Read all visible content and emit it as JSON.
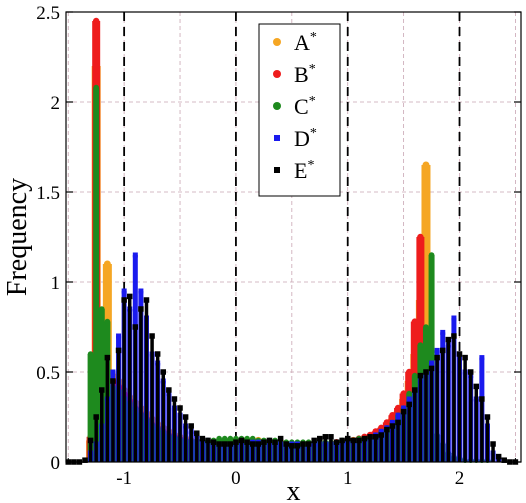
{
  "chart_data": {
    "type": "bar",
    "title": "",
    "xlabel": "x",
    "ylabel": "Frequency",
    "xlim": [
      -1.52,
      2.55
    ],
    "ylim": [
      0,
      2.5
    ],
    "xticks": [
      -1,
      0,
      1,
      2
    ],
    "yticks": [
      0,
      0.5,
      1,
      1.5,
      2,
      2.5
    ],
    "xtick_labels": [
      "-1",
      "0",
      "1",
      "2"
    ],
    "ytick_labels": [
      "0",
      "0.5",
      "1",
      "1.5",
      "2",
      "2.5"
    ],
    "grid": true,
    "vertical_dashed_lines": [
      -1,
      0,
      1,
      2
    ],
    "legend_position": "top-center",
    "series": [
      {
        "name": "A",
        "color": "#f5a623",
        "x": [
          -1.3,
          -1.25,
          -1.2,
          -1.15,
          -1.1,
          -1.05,
          -1.0,
          -0.95,
          -0.9,
          -0.85,
          -0.8,
          -0.75,
          -0.7,
          -0.65,
          -0.6,
          -0.55,
          -0.5,
          -0.45,
          -0.4,
          -0.35,
          -0.3,
          -0.25,
          -0.2,
          -0.15,
          -0.1,
          -0.05,
          0.0,
          0.05,
          0.1,
          0.15,
          0.2,
          0.25,
          0.3,
          0.35,
          0.4,
          0.45,
          0.5,
          0.55,
          0.6,
          0.65,
          0.7,
          0.75,
          0.8,
          0.85,
          0.9,
          0.95,
          1.0,
          1.05,
          1.1,
          1.15,
          1.2,
          1.25,
          1.3,
          1.35,
          1.4,
          1.45,
          1.5,
          1.55,
          1.6,
          1.65,
          1.7
        ],
        "values": [
          0.12,
          2.2,
          0.7,
          1.1,
          0.48,
          0.45,
          0.4,
          0.36,
          0.33,
          0.3,
          0.27,
          0.24,
          0.21,
          0.19,
          0.17,
          0.15,
          0.14,
          0.13,
          0.12,
          0.11,
          0.1,
          0.1,
          0.1,
          0.1,
          0.11,
          0.11,
          0.12,
          0.12,
          0.12,
          0.12,
          0.12,
          0.11,
          0.11,
          0.11,
          0.11,
          0.1,
          0.1,
          0.1,
          0.1,
          0.1,
          0.1,
          0.1,
          0.1,
          0.1,
          0.1,
          0.11,
          0.11,
          0.12,
          0.12,
          0.13,
          0.14,
          0.16,
          0.18,
          0.2,
          0.24,
          0.28,
          0.35,
          0.45,
          0.6,
          0.9,
          1.65
        ]
      },
      {
        "name": "B",
        "color": "#ee1c1c",
        "x": [
          -1.3,
          -1.25,
          -1.2,
          -1.15,
          -1.1,
          -1.05,
          -1.0,
          -0.95,
          -0.9,
          -0.85,
          -0.8,
          -0.75,
          -0.7,
          -0.65,
          -0.6,
          -0.55,
          -0.5,
          -0.45,
          -0.4,
          -0.35,
          -0.3,
          -0.25,
          -0.2,
          -0.15,
          -0.1,
          -0.05,
          0.0,
          0.05,
          0.1,
          0.15,
          0.2,
          0.25,
          0.3,
          0.35,
          0.4,
          0.45,
          0.5,
          0.55,
          0.6,
          0.65,
          0.7,
          0.75,
          0.8,
          0.85,
          0.9,
          0.95,
          1.0,
          1.05,
          1.1,
          1.15,
          1.2,
          1.25,
          1.3,
          1.35,
          1.4,
          1.45,
          1.5,
          1.55,
          1.6,
          1.65,
          1.7
        ],
        "values": [
          0.14,
          2.45,
          0.45,
          0.42,
          0.45,
          0.42,
          0.38,
          0.34,
          0.3,
          0.27,
          0.24,
          0.21,
          0.19,
          0.17,
          0.15,
          0.14,
          0.13,
          0.12,
          0.11,
          0.1,
          0.1,
          0.1,
          0.1,
          0.11,
          0.11,
          0.12,
          0.12,
          0.12,
          0.12,
          0.12,
          0.11,
          0.11,
          0.11,
          0.1,
          0.1,
          0.1,
          0.1,
          0.1,
          0.1,
          0.1,
          0.1,
          0.1,
          0.1,
          0.1,
          0.11,
          0.11,
          0.12,
          0.12,
          0.13,
          0.14,
          0.15,
          0.17,
          0.19,
          0.22,
          0.26,
          0.3,
          0.38,
          0.5,
          0.78,
          1.25,
          0.15
        ]
      },
      {
        "name": "C",
        "color": "#1e8a1e",
        "x": [
          -1.3,
          -1.25,
          -1.2,
          -1.15,
          -1.1,
          -1.05,
          -1.0,
          -0.95,
          -0.9,
          -0.85,
          -0.8,
          -0.75,
          -0.7,
          -0.65,
          -0.6,
          -0.55,
          -0.5,
          -0.45,
          -0.4,
          -0.35,
          -0.3,
          -0.25,
          -0.2,
          -0.15,
          -0.1,
          -0.05,
          0.0,
          0.05,
          0.1,
          0.15,
          0.2,
          0.25,
          0.3,
          0.35,
          0.4,
          0.45,
          0.5,
          0.55,
          0.6,
          0.65,
          0.7,
          0.75,
          0.8,
          0.85,
          0.9,
          0.95,
          1.0,
          1.05,
          1.1,
          1.15,
          1.2,
          1.25,
          1.3,
          1.35,
          1.4,
          1.45,
          1.5,
          1.55,
          1.6,
          1.65,
          1.7,
          1.75,
          1.8,
          1.85,
          1.9,
          1.95,
          2.0,
          2.05,
          2.1,
          2.15,
          2.2,
          2.25
        ],
        "values": [
          0.6,
          2.08,
          0.85,
          0.78,
          0.42,
          0.4,
          0.36,
          0.33,
          0.3,
          0.27,
          0.24,
          0.21,
          0.19,
          0.17,
          0.15,
          0.14,
          0.13,
          0.12,
          0.12,
          0.12,
          0.12,
          0.12,
          0.12,
          0.13,
          0.13,
          0.13,
          0.13,
          0.13,
          0.13,
          0.13,
          0.12,
          0.12,
          0.12,
          0.12,
          0.11,
          0.11,
          0.11,
          0.11,
          0.11,
          0.11,
          0.11,
          0.11,
          0.11,
          0.11,
          0.11,
          0.12,
          0.12,
          0.12,
          0.13,
          0.13,
          0.14,
          0.15,
          0.17,
          0.19,
          0.22,
          0.26,
          0.3,
          0.38,
          0.48,
          0.65,
          0.75,
          1.15,
          0.15,
          0.1,
          0.05,
          0.03,
          0.02,
          0.01,
          0.01,
          0.01,
          0.01,
          0.01
        ]
      },
      {
        "name": "D",
        "color": "#1a1aee",
        "x": [
          -1.3,
          -1.25,
          -1.2,
          -1.15,
          -1.1,
          -1.05,
          -1.0,
          -0.95,
          -0.9,
          -0.85,
          -0.8,
          -0.75,
          -0.7,
          -0.65,
          -0.6,
          -0.55,
          -0.5,
          -0.45,
          -0.4,
          -0.35,
          -0.3,
          -0.25,
          -0.2,
          -0.15,
          -0.1,
          -0.05,
          0.0,
          0.05,
          0.1,
          0.15,
          0.2,
          0.25,
          0.3,
          0.35,
          0.4,
          0.45,
          0.5,
          0.55,
          0.6,
          0.65,
          0.7,
          0.75,
          0.8,
          0.85,
          0.9,
          0.95,
          1.0,
          1.05,
          1.1,
          1.15,
          1.2,
          1.25,
          1.3,
          1.35,
          1.4,
          1.45,
          1.5,
          1.55,
          1.6,
          1.65,
          1.7,
          1.75,
          1.8,
          1.85,
          1.9,
          1.95,
          2.0,
          2.05,
          2.1,
          2.15,
          2.2,
          2.25,
          2.3,
          2.35
        ],
        "values": [
          0.05,
          0.1,
          0.2,
          0.35,
          0.5,
          0.7,
          0.95,
          0.85,
          1.15,
          0.95,
          0.8,
          0.6,
          0.55,
          0.45,
          0.38,
          0.3,
          0.26,
          0.2,
          0.17,
          0.15,
          0.13,
          0.12,
          0.11,
          0.1,
          0.1,
          0.1,
          0.1,
          0.1,
          0.11,
          0.11,
          0.11,
          0.11,
          0.11,
          0.1,
          0.1,
          0.1,
          0.1,
          0.1,
          0.1,
          0.1,
          0.1,
          0.1,
          0.1,
          0.1,
          0.1,
          0.11,
          0.11,
          0.12,
          0.12,
          0.13,
          0.14,
          0.15,
          0.17,
          0.19,
          0.22,
          0.26,
          0.3,
          0.35,
          0.4,
          0.45,
          0.5,
          0.55,
          0.62,
          0.72,
          0.65,
          0.8,
          0.6,
          0.5,
          0.48,
          0.35,
          0.58,
          0.2,
          0.05,
          0.02
        ]
      },
      {
        "name": "E",
        "color": "#000000",
        "x": [
          -1.5,
          -1.45,
          -1.4,
          -1.35,
          -1.3,
          -1.25,
          -1.2,
          -1.15,
          -1.1,
          -1.05,
          -1.0,
          -0.95,
          -0.9,
          -0.85,
          -0.8,
          -0.75,
          -0.7,
          -0.65,
          -0.6,
          -0.55,
          -0.5,
          -0.45,
          -0.4,
          -0.35,
          -0.3,
          -0.25,
          -0.2,
          -0.15,
          -0.1,
          -0.05,
          0.0,
          0.05,
          0.1,
          0.15,
          0.2,
          0.25,
          0.3,
          0.35,
          0.4,
          0.45,
          0.5,
          0.55,
          0.6,
          0.65,
          0.7,
          0.75,
          0.8,
          0.85,
          0.9,
          0.95,
          1.0,
          1.05,
          1.1,
          1.15,
          1.2,
          1.25,
          1.3,
          1.35,
          1.4,
          1.45,
          1.5,
          1.55,
          1.6,
          1.65,
          1.7,
          1.75,
          1.8,
          1.85,
          1.9,
          1.95,
          2.0,
          2.05,
          2.1,
          2.15,
          2.2,
          2.25,
          2.3,
          2.35,
          2.4,
          2.45,
          2.5
        ],
        "values": [
          0.0,
          0.0,
          0.0,
          0.01,
          0.12,
          0.25,
          0.4,
          0.58,
          0.45,
          0.62,
          0.9,
          0.92,
          0.75,
          0.85,
          0.9,
          0.7,
          0.6,
          0.5,
          0.4,
          0.35,
          0.3,
          0.25,
          0.2,
          0.16,
          0.13,
          0.12,
          0.11,
          0.1,
          0.1,
          0.1,
          0.11,
          0.12,
          0.11,
          0.1,
          0.1,
          0.11,
          0.12,
          0.11,
          0.13,
          0.1,
          0.09,
          0.09,
          0.1,
          0.1,
          0.12,
          0.13,
          0.14,
          0.14,
          0.11,
          0.12,
          0.13,
          0.12,
          0.12,
          0.13,
          0.14,
          0.14,
          0.15,
          0.18,
          0.2,
          0.22,
          0.28,
          0.32,
          0.4,
          0.48,
          0.5,
          0.52,
          0.58,
          0.62,
          0.68,
          0.7,
          0.6,
          0.58,
          0.5,
          0.42,
          0.35,
          0.25,
          0.1,
          0.03,
          0.01,
          0.0,
          0.0
        ]
      }
    ],
    "legend": [
      {
        "label": "A",
        "sup": "*"
      },
      {
        "label": "B",
        "sup": "*"
      },
      {
        "label": "C",
        "sup": "*"
      },
      {
        "label": "D",
        "sup": "*"
      },
      {
        "label": "E",
        "sup": "*"
      }
    ]
  }
}
